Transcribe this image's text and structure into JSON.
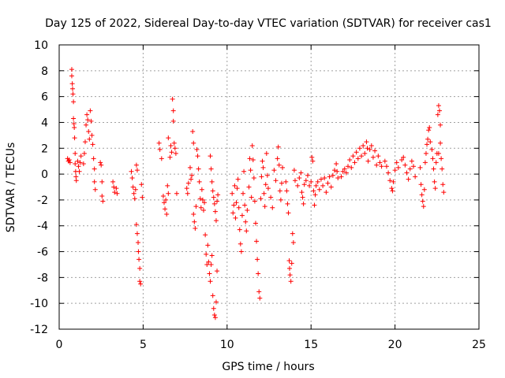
{
  "chart_data": {
    "type": "scatter",
    "title": "Day 125 of 2022, Sidereal Day-to-day VTEC variation (SDTVAR) for receiver cas1",
    "xlabel": "GPS time / hours",
    "ylabel": "SDTVAR / TECUs",
    "xlim": [
      0,
      25
    ],
    "ylim": [
      -12,
      10
    ],
    "xticks": [
      0,
      5,
      10,
      15,
      20,
      25
    ],
    "yticks": [
      -12,
      -10,
      -8,
      -6,
      -4,
      -2,
      0,
      2,
      4,
      6,
      8,
      10
    ],
    "grid": true,
    "marker": "+",
    "color": "#ff0000",
    "series": [
      {
        "name": "SDTVAR",
        "points": [
          [
            0.5,
            1.2
          ],
          [
            0.55,
            1.0
          ],
          [
            0.6,
            1.1
          ],
          [
            0.65,
            0.9
          ],
          [
            0.75,
            8.1
          ],
          [
            0.75,
            7.6
          ],
          [
            0.78,
            7.0
          ],
          [
            0.8,
            6.6
          ],
          [
            0.82,
            6.2
          ],
          [
            0.85,
            5.6
          ],
          [
            0.85,
            4.3
          ],
          [
            0.88,
            3.9
          ],
          [
            0.9,
            3.6
          ],
          [
            0.92,
            2.8
          ],
          [
            0.95,
            1.6
          ],
          [
            0.95,
            0.8
          ],
          [
            0.98,
            0.2
          ],
          [
            1.0,
            -0.2
          ],
          [
            1.02,
            -0.5
          ],
          [
            1.1,
            1.0
          ],
          [
            1.15,
            0.6
          ],
          [
            1.2,
            0.2
          ],
          [
            1.25,
            0.9
          ],
          [
            1.3,
            1.4
          ],
          [
            1.45,
            0.8
          ],
          [
            1.5,
            1.6
          ],
          [
            1.55,
            2.5
          ],
          [
            1.6,
            3.8
          ],
          [
            1.65,
            4.6
          ],
          [
            1.7,
            4.2
          ],
          [
            1.75,
            3.3
          ],
          [
            1.8,
            2.7
          ],
          [
            1.85,
            4.9
          ],
          [
            1.9,
            4.1
          ],
          [
            1.95,
            3.0
          ],
          [
            2.0,
            2.3
          ],
          [
            2.05,
            1.2
          ],
          [
            2.1,
            0.4
          ],
          [
            2.1,
            -0.6
          ],
          [
            2.15,
            -1.2
          ],
          [
            2.45,
            0.9
          ],
          [
            2.5,
            0.7
          ],
          [
            2.55,
            -0.6
          ],
          [
            2.55,
            -1.7
          ],
          [
            2.6,
            -2.1
          ],
          [
            3.2,
            -0.6
          ],
          [
            3.25,
            -1.0
          ],
          [
            3.3,
            -1.4
          ],
          [
            3.4,
            -1.1
          ],
          [
            3.45,
            -1.5
          ],
          [
            4.3,
            0.2
          ],
          [
            4.35,
            -0.3
          ],
          [
            4.4,
            -1.0
          ],
          [
            4.45,
            -1.5
          ],
          [
            4.5,
            -1.9
          ],
          [
            4.55,
            -1.2
          ],
          [
            4.6,
            0.7
          ],
          [
            4.65,
            0.3
          ],
          [
            4.6,
            -3.9
          ],
          [
            4.65,
            -4.6
          ],
          [
            4.7,
            -5.3
          ],
          [
            4.72,
            -6.0
          ],
          [
            4.75,
            -6.6
          ],
          [
            4.8,
            -7.3
          ],
          [
            4.8,
            -8.3
          ],
          [
            4.85,
            -8.5
          ],
          [
            4.9,
            -0.8
          ],
          [
            4.95,
            -1.8
          ],
          [
            5.95,
            2.4
          ],
          [
            6.0,
            1.9
          ],
          [
            6.1,
            1.2
          ],
          [
            6.2,
            -1.7
          ],
          [
            6.25,
            -2.2
          ],
          [
            6.3,
            -2.7
          ],
          [
            6.35,
            -2.0
          ],
          [
            6.4,
            -3.1
          ],
          [
            6.45,
            -0.9
          ],
          [
            6.5,
            -1.5
          ],
          [
            6.5,
            2.8
          ],
          [
            6.6,
            1.3
          ],
          [
            6.65,
            2.2
          ],
          [
            6.7,
            1.7
          ],
          [
            6.75,
            5.8
          ],
          [
            6.8,
            4.9
          ],
          [
            6.8,
            4.1
          ],
          [
            6.85,
            2.4
          ],
          [
            6.9,
            2.0
          ],
          [
            6.95,
            1.6
          ],
          [
            7.0,
            -1.5
          ],
          [
            7.6,
            -1.1
          ],
          [
            7.65,
            -1.5
          ],
          [
            7.7,
            -0.7
          ],
          [
            7.8,
            0.5
          ],
          [
            7.85,
            -0.4
          ],
          [
            7.9,
            -0.1
          ],
          [
            7.95,
            3.3
          ],
          [
            8.0,
            2.4
          ],
          [
            8.0,
            -3.1
          ],
          [
            8.05,
            -3.7
          ],
          [
            8.1,
            -4.2
          ],
          [
            8.15,
            -2.5
          ],
          [
            8.2,
            1.9
          ],
          [
            8.25,
            1.4
          ],
          [
            8.3,
            0.4
          ],
          [
            8.35,
            -0.6
          ],
          [
            8.4,
            -1.9
          ],
          [
            8.45,
            -2.6
          ],
          [
            8.5,
            -1.2
          ],
          [
            8.55,
            -2.0
          ],
          [
            8.6,
            -2.8
          ],
          [
            8.65,
            -2.2
          ],
          [
            8.7,
            -4.7
          ],
          [
            8.75,
            -6.2
          ],
          [
            8.8,
            -7.0
          ],
          [
            8.85,
            -5.5
          ],
          [
            8.9,
            -6.8
          ],
          [
            8.95,
            -7.7
          ],
          [
            9.0,
            -8.3
          ],
          [
            9.05,
            -7.0
          ],
          [
            9.1,
            -6.3
          ],
          [
            9.15,
            -9.4
          ],
          [
            9.2,
            -10.4
          ],
          [
            9.25,
            -10.9
          ],
          [
            9.3,
            -11.1
          ],
          [
            9.35,
            -9.9
          ],
          [
            9.4,
            -7.5
          ],
          [
            9.0,
            1.4
          ],
          [
            9.05,
            0.4
          ],
          [
            9.1,
            -0.6
          ],
          [
            9.15,
            -1.3
          ],
          [
            9.2,
            -1.8
          ],
          [
            9.25,
            -2.3
          ],
          [
            9.3,
            -2.9
          ],
          [
            9.35,
            -3.6
          ],
          [
            9.4,
            -2.1
          ],
          [
            9.45,
            -1.6
          ],
          [
            10.3,
            -1.5
          ],
          [
            10.35,
            -3.0
          ],
          [
            10.4,
            -2.4
          ],
          [
            10.45,
            -0.9
          ],
          [
            10.5,
            -3.4
          ],
          [
            10.55,
            -2.2
          ],
          [
            10.6,
            -1.1
          ],
          [
            10.65,
            -0.4
          ],
          [
            10.7,
            -2.6
          ],
          [
            10.75,
            -4.3
          ],
          [
            10.8,
            -5.4
          ],
          [
            10.85,
            -6.0
          ],
          [
            10.9,
            -3.2
          ],
          [
            10.95,
            -1.5
          ],
          [
            11.0,
            0.2
          ],
          [
            11.05,
            -2.4
          ],
          [
            11.1,
            -3.7
          ],
          [
            11.15,
            -4.4
          ],
          [
            11.2,
            -2.8
          ],
          [
            11.3,
            -1.0
          ],
          [
            11.35,
            1.2
          ],
          [
            11.4,
            0.3
          ],
          [
            11.45,
            -1.8
          ],
          [
            11.5,
            2.2
          ],
          [
            11.55,
            1.1
          ],
          [
            11.6,
            -0.3
          ],
          [
            11.65,
            -2.1
          ],
          [
            11.7,
            -3.8
          ],
          [
            11.75,
            -5.2
          ],
          [
            11.8,
            -6.6
          ],
          [
            11.85,
            -7.7
          ],
          [
            11.9,
            -9.1
          ],
          [
            11.95,
            -9.6
          ],
          [
            12.0,
            -1.9
          ],
          [
            12.05,
            -0.2
          ],
          [
            12.1,
            1.0
          ],
          [
            12.15,
            0.5
          ],
          [
            12.2,
            -1.5
          ],
          [
            12.25,
            -2.5
          ],
          [
            12.3,
            -0.8
          ],
          [
            12.35,
            1.6
          ],
          [
            12.4,
            -0.1
          ],
          [
            12.45,
            -1.1
          ],
          [
            12.6,
            -1.8
          ],
          [
            12.7,
            -2.6
          ],
          [
            12.8,
            0.3
          ],
          [
            12.9,
            -0.5
          ],
          [
            13.0,
            1.2
          ],
          [
            13.05,
            2.1
          ],
          [
            13.1,
            0.7
          ],
          [
            13.15,
            -1.3
          ],
          [
            13.2,
            -2.0
          ],
          [
            13.25,
            -0.7
          ],
          [
            13.3,
            0.5
          ],
          [
            13.5,
            -0.6
          ],
          [
            13.55,
            -1.3
          ],
          [
            13.6,
            -2.3
          ],
          [
            13.65,
            -3.0
          ],
          [
            13.7,
            -6.7
          ],
          [
            13.72,
            -7.3
          ],
          [
            13.75,
            -7.8
          ],
          [
            13.8,
            -8.3
          ],
          [
            13.85,
            -6.9
          ],
          [
            13.9,
            -4.6
          ],
          [
            13.95,
            -5.3
          ],
          [
            14.0,
            0.3
          ],
          [
            14.05,
            -0.5
          ],
          [
            14.2,
            -0.9
          ],
          [
            14.3,
            -0.3
          ],
          [
            14.4,
            0.1
          ],
          [
            14.45,
            -1.4
          ],
          [
            14.5,
            -1.8
          ],
          [
            14.55,
            -2.3
          ],
          [
            14.6,
            -0.8
          ],
          [
            14.7,
            -0.5
          ],
          [
            14.8,
            -0.1
          ],
          [
            14.9,
            -0.9
          ],
          [
            15.0,
            -0.6
          ],
          [
            15.05,
            1.3
          ],
          [
            15.1,
            1.0
          ],
          [
            15.15,
            -1.3
          ],
          [
            15.2,
            -2.4
          ],
          [
            15.25,
            -1.6
          ],
          [
            15.3,
            -0.9
          ],
          [
            15.4,
            -0.6
          ],
          [
            15.5,
            -1.2
          ],
          [
            15.6,
            -0.4
          ],
          [
            15.7,
            -0.9
          ],
          [
            15.8,
            -0.3
          ],
          [
            15.9,
            -1.4
          ],
          [
            16.0,
            -0.7
          ],
          [
            16.1,
            -0.2
          ],
          [
            16.2,
            -1.0
          ],
          [
            16.3,
            -0.1
          ],
          [
            16.4,
            0.3
          ],
          [
            16.5,
            0.8
          ],
          [
            16.55,
            0.2
          ],
          [
            16.6,
            -0.3
          ],
          [
            16.8,
            -0.2
          ],
          [
            16.9,
            0.2
          ],
          [
            17.0,
            0.4
          ],
          [
            17.1,
            0.1
          ],
          [
            17.2,
            0.6
          ],
          [
            17.3,
            1.1
          ],
          [
            17.4,
            0.5
          ],
          [
            17.5,
            1.4
          ],
          [
            17.6,
            0.9
          ],
          [
            17.7,
            1.7
          ],
          [
            17.8,
            1.2
          ],
          [
            17.9,
            2.0
          ],
          [
            18.0,
            1.4
          ],
          [
            18.1,
            2.2
          ],
          [
            18.2,
            1.6
          ],
          [
            18.3,
            2.5
          ],
          [
            18.35,
            2.0
          ],
          [
            18.4,
            1.0
          ],
          [
            18.5,
            1.9
          ],
          [
            18.6,
            2.2
          ],
          [
            18.7,
            1.3
          ],
          [
            18.8,
            1.8
          ],
          [
            18.9,
            0.7
          ],
          [
            19.0,
            1.4
          ],
          [
            19.1,
            0.9
          ],
          [
            19.2,
            0.6
          ],
          [
            19.4,
            1.0
          ],
          [
            19.5,
            0.6
          ],
          [
            19.6,
            0.1
          ],
          [
            19.7,
            -0.5
          ],
          [
            19.8,
            -1.1
          ],
          [
            19.85,
            -1.3
          ],
          [
            19.9,
            -0.6
          ],
          [
            20.0,
            0.3
          ],
          [
            20.1,
            0.9
          ],
          [
            20.2,
            0.5
          ],
          [
            20.4,
            1.1
          ],
          [
            20.5,
            1.3
          ],
          [
            20.6,
            0.7
          ],
          [
            20.7,
            0.1
          ],
          [
            20.8,
            -0.4
          ],
          [
            20.9,
            0.4
          ],
          [
            21.0,
            1.0
          ],
          [
            21.1,
            0.6
          ],
          [
            21.2,
            -0.2
          ],
          [
            21.5,
            0.5
          ],
          [
            21.55,
            -0.8
          ],
          [
            21.6,
            -1.6
          ],
          [
            21.65,
            -2.1
          ],
          [
            21.7,
            -2.5
          ],
          [
            21.75,
            -1.2
          ],
          [
            21.8,
            0.9
          ],
          [
            21.85,
            1.6
          ],
          [
            21.9,
            2.3
          ],
          [
            21.95,
            2.7
          ],
          [
            22.0,
            3.4
          ],
          [
            22.05,
            3.6
          ],
          [
            22.1,
            2.5
          ],
          [
            22.2,
            1.9
          ],
          [
            22.25,
            1.2
          ],
          [
            22.3,
            0.4
          ],
          [
            22.35,
            -0.6
          ],
          [
            22.4,
            -1.1
          ],
          [
            22.45,
            0.9
          ],
          [
            22.5,
            1.6
          ],
          [
            22.55,
            4.6
          ],
          [
            22.6,
            5.3
          ],
          [
            22.65,
            4.9
          ],
          [
            22.7,
            3.8
          ],
          [
            22.75,
            1.2
          ],
          [
            22.8,
            0.4
          ],
          [
            22.85,
            -0.8
          ],
          [
            22.9,
            -1.4
          ],
          [
            22.7,
            2.4
          ],
          [
            22.6,
            1.6
          ]
        ]
      }
    ]
  }
}
